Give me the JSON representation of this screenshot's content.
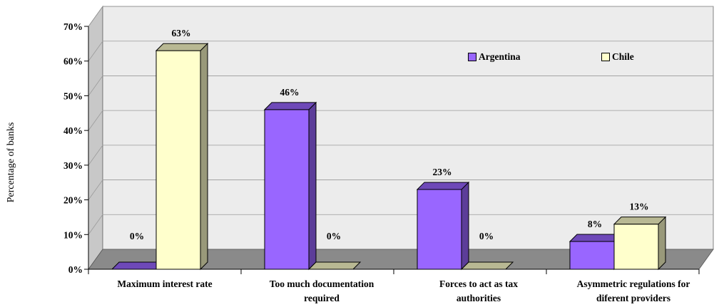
{
  "chart_data": {
    "type": "bar",
    "title": "",
    "xlabel": "",
    "ylabel": "Percentage of banks",
    "categories": [
      [
        "Maximum interest rate"
      ],
      [
        "Too much documentation",
        "required"
      ],
      [
        "Forces to act as tax",
        "authorities"
      ],
      [
        "Asymmetric regulations for",
        "diferent providers"
      ]
    ],
    "series": [
      {
        "name": "Argentina",
        "values": [
          0,
          46,
          23,
          8
        ],
        "labels": [
          "0%",
          "46%",
          "23%",
          "8%"
        ],
        "color": "#9966ff"
      },
      {
        "name": "Chile",
        "values": [
          63,
          0,
          0,
          13
        ],
        "labels": [
          "63%",
          "0%",
          "0%",
          "13%"
        ],
        "color": "#ffffcc"
      }
    ],
    "ylim": [
      0,
      70
    ],
    "yticks": [
      "0%",
      "10%",
      "20%",
      "30%",
      "40%",
      "50%",
      "60%",
      "70%"
    ],
    "legend_position": "top-right",
    "grid": true,
    "style": "3d-bar"
  }
}
